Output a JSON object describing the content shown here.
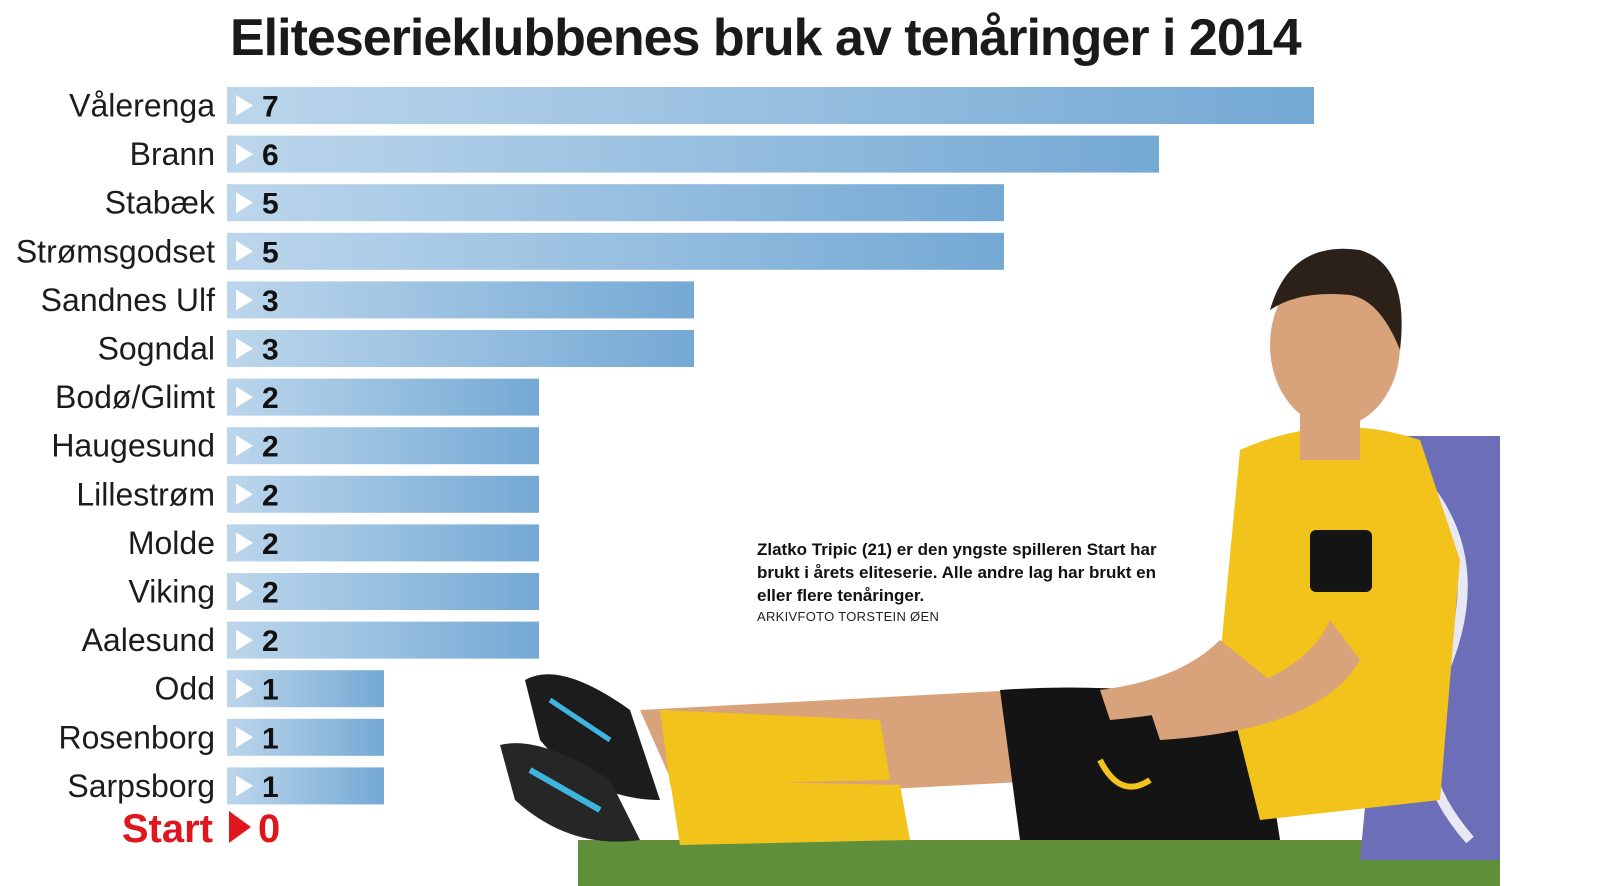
{
  "title": "Eliteserieklubbenes bruk av tenåringer i 2014",
  "caption": "Zlatko Tripic (21) er den yngste spilleren Start har brukt i årets eliteserie. Alle andre lag har brukt en eller flere tenåringer.",
  "photo_credit": "ARKIVFOTO TORSTEIN ØEN",
  "colors": {
    "bar": "#74a9d4",
    "bar_light": "#bcd6ec",
    "arrow": "#ffffff",
    "highlight": "#e0161e"
  },
  "chart_data": {
    "type": "bar",
    "orientation": "horizontal",
    "title": "Eliteserieklubbenes bruk av tenåringer i 2014",
    "categories": [
      "Vålerenga",
      "Brann",
      "Stabæk",
      "Strømsgodset",
      "Sandnes Ulf",
      "Sogndal",
      "Bodø/Glimt",
      "Haugesund",
      "Lillestrøm",
      "Molde",
      "Viking",
      "Aalesund",
      "Odd",
      "Rosenborg",
      "Sarpsborg"
    ],
    "values": [
      7,
      6,
      5,
      5,
      3,
      3,
      2,
      2,
      2,
      2,
      2,
      2,
      1,
      1,
      1
    ],
    "highlight": {
      "category": "Start",
      "value": 0
    },
    "xlim": [
      0,
      7
    ],
    "grid": false,
    "legend": "none"
  }
}
